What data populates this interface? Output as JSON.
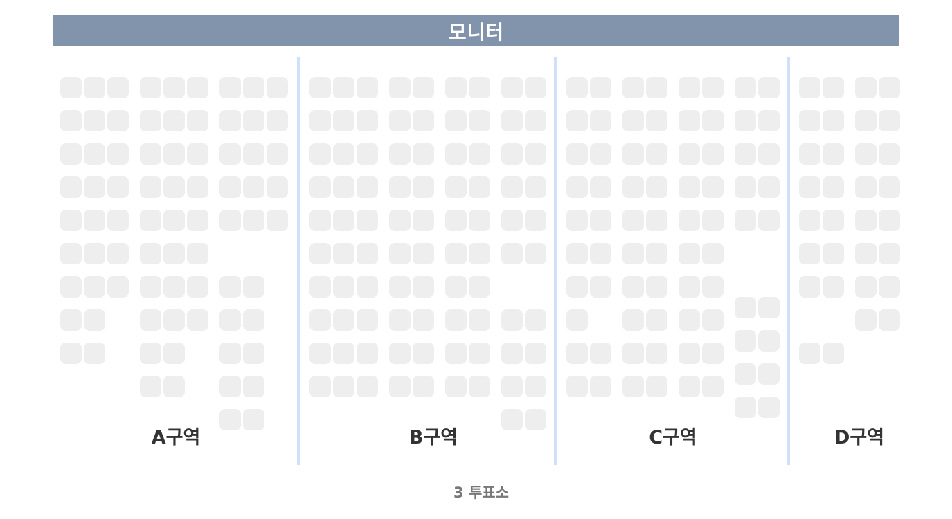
{
  "screen_label": "모니터",
  "sections": [
    {
      "label": "A구역"
    },
    {
      "label": "B구역"
    },
    {
      "label": "C구역"
    },
    {
      "label": "D구역"
    }
  ],
  "footer": "3 투표소",
  "colors": {
    "monitor_bar": "#8294ab",
    "seat": "#eeeeee",
    "divider": "#cfe0f8",
    "label_text": "#333333",
    "footer_text": "#777777"
  }
}
